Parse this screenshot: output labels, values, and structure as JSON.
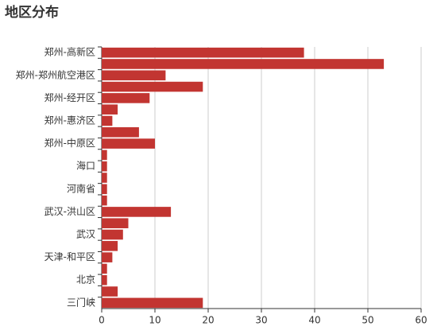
{
  "chart_data": {
    "type": "hbar",
    "title": "地区分布",
    "categories": [
      "郑州-高新区",
      null,
      "郑州-郑州航空港区",
      null,
      "郑州-经开区",
      null,
      "郑州-惠济区",
      null,
      "郑州-中原区",
      null,
      "海口",
      null,
      "河南省",
      null,
      "武汉-洪山区",
      null,
      "武汉",
      null,
      "天津-和平区",
      null,
      "北京",
      null,
      "三门峡"
    ],
    "values": [
      38,
      53,
      12,
      19,
      9,
      3,
      2,
      7,
      10,
      1,
      1,
      1,
      1,
      1,
      13,
      5,
      4,
      3,
      2,
      1,
      1,
      3,
      19
    ],
    "color": "#c23531",
    "xlim": [
      0,
      60
    ],
    "xticks": [
      0,
      10,
      20,
      30,
      40,
      50,
      60
    ],
    "grid": true
  }
}
